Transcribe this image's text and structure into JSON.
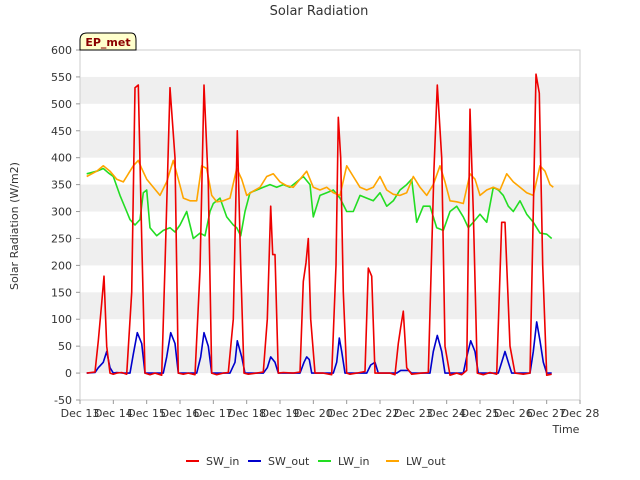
{
  "chart_data": {
    "type": "line",
    "title": "Solar Radiation",
    "xlabel": "Time",
    "ylabel": "Solar Radiation (W/m2)",
    "site_label": "EP_met",
    "xlim": [
      13,
      28
    ],
    "ylim": [
      -50,
      600
    ],
    "x_ticks": [
      13,
      14,
      15,
      16,
      17,
      18,
      19,
      20,
      21,
      22,
      23,
      24,
      25,
      26,
      27,
      28
    ],
    "x_tick_labels": [
      "Dec 13",
      "Dec 14",
      "Dec 15",
      "Dec 16",
      "Dec 17",
      "Dec 18",
      "Dec 19",
      "Dec 20",
      "Dec 21",
      "Dec 22",
      "Dec 23",
      "Dec 24",
      "Dec 25",
      "Dec 26",
      "Dec 27",
      "Dec 28"
    ],
    "y_ticks": [
      -50,
      0,
      50,
      100,
      150,
      200,
      250,
      300,
      350,
      400,
      450,
      500,
      550,
      600
    ],
    "y_tick_labels": [
      "-50",
      "0",
      "50",
      "100",
      "150",
      "200",
      "250",
      "300",
      "350",
      "400",
      "450",
      "500",
      "550",
      "600"
    ],
    "legend_position": "bottom-center",
    "grid": "horizontal bands",
    "series": [
      {
        "name": "SW_in",
        "color": "#ee0000",
        "x": [
          13.2,
          13.45,
          13.55,
          13.65,
          13.72,
          13.8,
          13.9,
          14.0,
          14.1,
          14.25,
          14.4,
          14.55,
          14.65,
          14.75,
          14.85,
          14.95,
          15.1,
          15.25,
          15.45,
          15.55,
          15.7,
          15.85,
          15.95,
          16.1,
          16.25,
          16.45,
          16.6,
          16.72,
          16.85,
          16.95,
          17.1,
          17.3,
          17.45,
          17.6,
          17.72,
          17.82,
          17.92,
          18.05,
          18.3,
          18.5,
          18.62,
          18.72,
          18.78,
          18.85,
          18.95,
          19.1,
          19.4,
          19.6,
          19.7,
          19.78,
          19.85,
          19.92,
          20.05,
          20.3,
          20.55,
          20.68,
          20.75,
          20.82,
          20.9,
          21.0,
          21.1,
          21.3,
          21.55,
          21.65,
          21.75,
          21.85,
          22.0,
          22.3,
          22.45,
          22.55,
          22.62,
          22.7,
          22.8,
          22.95,
          23.25,
          23.45,
          23.62,
          23.72,
          23.85,
          23.95,
          24.1,
          24.3,
          24.45,
          24.6,
          24.7,
          24.8,
          24.92,
          25.1,
          25.3,
          25.5,
          25.65,
          25.75,
          25.9,
          26.05,
          26.3,
          26.5,
          26.6,
          26.68,
          26.78,
          26.88,
          27.0,
          27.15
        ],
        "values": [
          0,
          2,
          60,
          130,
          180,
          50,
          0,
          -2,
          0,
          1,
          -2,
          150,
          530,
          535,
          250,
          0,
          -3,
          0,
          -4,
          200,
          530,
          400,
          0,
          -2,
          0,
          -3,
          190,
          535,
          350,
          0,
          -3,
          0,
          1,
          100,
          450,
          200,
          0,
          -2,
          0,
          2,
          100,
          310,
          220,
          220,
          0,
          1,
          0,
          2,
          170,
          205,
          250,
          100,
          0,
          0,
          -3,
          200,
          475,
          400,
          150,
          0,
          -2,
          0,
          3,
          195,
          180,
          0,
          0,
          0,
          -3,
          55,
          85,
          115,
          10,
          -2,
          0,
          1,
          380,
          535,
          400,
          50,
          -4,
          0,
          -3,
          5,
          490,
          300,
          0,
          -3,
          1,
          -2,
          280,
          280,
          50,
          0,
          -2,
          0,
          300,
          555,
          520,
          200,
          -4,
          -2
        ]
      },
      {
        "name": "SW_out",
        "color": "#0000cc",
        "x": [
          13.2,
          13.45,
          13.55,
          13.7,
          13.8,
          13.9,
          14.0,
          14.1,
          14.3,
          14.5,
          14.6,
          14.72,
          14.85,
          14.95,
          15.1,
          15.5,
          15.6,
          15.72,
          15.85,
          15.95,
          16.1,
          16.5,
          16.62,
          16.72,
          16.85,
          16.95,
          17.1,
          17.5,
          17.65,
          17.72,
          17.85,
          17.95,
          18.1,
          18.5,
          18.62,
          18.72,
          18.85,
          18.95,
          19.1,
          19.6,
          19.72,
          19.8,
          19.88,
          19.95,
          20.1,
          20.6,
          20.7,
          20.78,
          20.85,
          20.95,
          21.1,
          21.6,
          21.72,
          21.85,
          21.95,
          22.1,
          22.5,
          22.62,
          22.72,
          22.85,
          22.95,
          23.1,
          23.5,
          23.6,
          23.72,
          23.85,
          23.95,
          24.1,
          24.5,
          24.6,
          24.72,
          24.85,
          24.95,
          25.1,
          25.55,
          25.65,
          25.75,
          25.85,
          25.95,
          26.1,
          26.5,
          26.6,
          26.7,
          26.8,
          26.9,
          27.0,
          27.15
        ],
        "values": [
          0,
          1,
          10,
          20,
          40,
          10,
          0,
          1,
          0,
          0,
          35,
          75,
          55,
          0,
          0,
          0,
          30,
          75,
          55,
          0,
          0,
          0,
          30,
          75,
          50,
          0,
          0,
          0,
          20,
          60,
          30,
          0,
          0,
          0,
          10,
          30,
          20,
          0,
          0,
          0,
          20,
          30,
          25,
          0,
          0,
          0,
          20,
          65,
          40,
          0,
          0,
          0,
          15,
          20,
          0,
          0,
          0,
          5,
          5,
          5,
          0,
          0,
          0,
          40,
          70,
          40,
          0,
          0,
          0,
          30,
          60,
          40,
          0,
          0,
          0,
          20,
          40,
          20,
          0,
          0,
          0,
          40,
          95,
          60,
          20,
          0,
          0
        ]
      },
      {
        "name": "LW_in",
        "color": "#22dd22",
        "x": [
          13.2,
          13.5,
          13.7,
          13.85,
          14.0,
          14.2,
          14.4,
          14.5,
          14.65,
          14.8,
          14.9,
          15.0,
          15.1,
          15.3,
          15.5,
          15.7,
          15.85,
          16.0,
          16.2,
          16.4,
          16.6,
          16.75,
          16.9,
          17.0,
          17.2,
          17.4,
          17.6,
          17.7,
          17.82,
          17.95,
          18.1,
          18.3,
          18.5,
          18.7,
          18.9,
          19.1,
          19.3,
          19.5,
          19.7,
          19.9,
          20.0,
          20.2,
          20.4,
          20.6,
          20.8,
          21.0,
          21.2,
          21.4,
          21.6,
          21.8,
          22.0,
          22.2,
          22.4,
          22.6,
          22.8,
          22.95,
          23.1,
          23.3,
          23.5,
          23.7,
          23.9,
          24.1,
          24.3,
          24.5,
          24.65,
          24.8,
          25.0,
          25.2,
          25.4,
          25.55,
          25.7,
          25.85,
          26.0,
          26.2,
          26.4,
          26.6,
          26.8,
          27.0,
          27.15
        ],
        "values": [
          370,
          375,
          380,
          372,
          365,
          330,
          300,
          285,
          275,
          285,
          335,
          340,
          270,
          255,
          265,
          270,
          262,
          275,
          300,
          250,
          260,
          255,
          300,
          315,
          325,
          290,
          275,
          270,
          255,
          300,
          335,
          340,
          345,
          350,
          345,
          350,
          345,
          355,
          365,
          350,
          290,
          330,
          335,
          340,
          325,
          300,
          300,
          330,
          325,
          320,
          335,
          310,
          320,
          340,
          350,
          360,
          280,
          310,
          310,
          270,
          265,
          300,
          310,
          290,
          270,
          280,
          295,
          280,
          345,
          340,
          330,
          310,
          300,
          320,
          295,
          280,
          260,
          258,
          250
        ]
      },
      {
        "name": "LW_out",
        "color": "#ffa500",
        "x": [
          13.2,
          13.5,
          13.7,
          13.9,
          14.1,
          14.3,
          14.6,
          14.75,
          14.85,
          15.0,
          15.2,
          15.4,
          15.6,
          15.8,
          15.95,
          16.1,
          16.3,
          16.5,
          16.65,
          16.8,
          16.95,
          17.1,
          17.3,
          17.5,
          17.7,
          17.85,
          18.0,
          18.2,
          18.4,
          18.6,
          18.8,
          19.0,
          19.2,
          19.4,
          19.6,
          19.8,
          20.0,
          20.2,
          20.4,
          20.6,
          20.8,
          21.0,
          21.2,
          21.4,
          21.6,
          21.8,
          22.0,
          22.2,
          22.4,
          22.6,
          22.8,
          23.0,
          23.2,
          23.4,
          23.6,
          23.8,
          23.95,
          24.1,
          24.3,
          24.5,
          24.7,
          24.85,
          25.0,
          25.2,
          25.4,
          25.6,
          25.8,
          26.0,
          26.2,
          26.4,
          26.6,
          26.8,
          26.95,
          27.1,
          27.2
        ],
        "values": [
          365,
          375,
          385,
          375,
          360,
          355,
          385,
          395,
          380,
          360,
          345,
          330,
          355,
          395,
          360,
          325,
          320,
          320,
          385,
          380,
          330,
          318,
          320,
          325,
          380,
          360,
          330,
          338,
          345,
          365,
          370,
          355,
          348,
          345,
          360,
          375,
          345,
          340,
          345,
          335,
          330,
          385,
          365,
          345,
          340,
          345,
          365,
          340,
          332,
          330,
          335,
          365,
          345,
          330,
          350,
          385,
          355,
          320,
          318,
          315,
          370,
          360,
          330,
          340,
          345,
          340,
          370,
          355,
          345,
          335,
          330,
          385,
          375,
          350,
          345
        ]
      }
    ]
  }
}
